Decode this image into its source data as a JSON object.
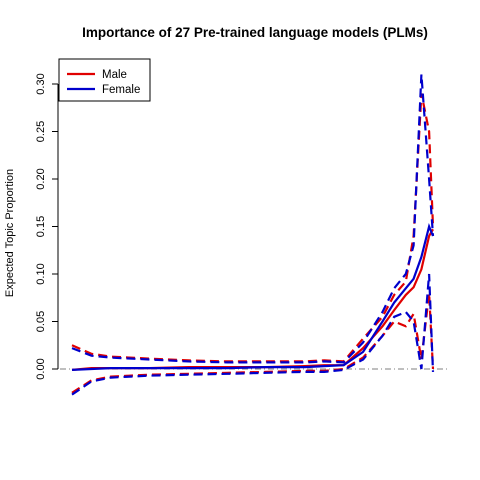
{
  "chart_data": {
    "type": "line",
    "title": "Importance of 27 Pre-trained language models (PLMs)",
    "xlabel": "",
    "ylabel": "Expected Topic Proportion",
    "ylim": [
      -0.03,
      0.32
    ],
    "xlim": [
      0.0,
      0.96
    ],
    "y_ticks": [
      0.0,
      0.05,
      0.1,
      0.15,
      0.2,
      0.25,
      0.3
    ],
    "y_tick_labels": [
      "0.00",
      "0.05",
      "0.10",
      "0.15",
      "0.20",
      "0.25",
      "0.30"
    ],
    "reference_line": 0,
    "grid": false,
    "legend": {
      "position": "top-left",
      "entries": [
        {
          "label": "Male",
          "color": "#e00000"
        },
        {
          "label": "Female",
          "color": "#0000cc"
        }
      ]
    },
    "series": [
      {
        "name": "Male",
        "color": "#e00000",
        "x": [
          0.0,
          0.05,
          0.1,
          0.2,
          0.3,
          0.4,
          0.5,
          0.6,
          0.65,
          0.7,
          0.75,
          0.8,
          0.83,
          0.86,
          0.88,
          0.9,
          0.92,
          0.93
        ],
        "y": [
          -0.001,
          0.001,
          0.001,
          0.001,
          0.002,
          0.002,
          0.002,
          0.003,
          0.004,
          0.004,
          0.022,
          0.045,
          0.062,
          0.078,
          0.086,
          0.105,
          0.14,
          0.147
        ],
        "lower": [
          -0.025,
          -0.012,
          -0.008,
          -0.006,
          -0.005,
          -0.004,
          -0.003,
          -0.002,
          -0.002,
          0.0,
          0.012,
          0.035,
          0.05,
          0.045,
          0.058,
          0.01,
          0.08,
          0.0
        ],
        "upper": [
          0.025,
          0.016,
          0.013,
          0.011,
          0.009,
          0.008,
          0.008,
          0.008,
          0.009,
          0.008,
          0.032,
          0.055,
          0.078,
          0.092,
          0.14,
          0.29,
          0.25,
          0.15
        ]
      },
      {
        "name": "Female",
        "color": "#0000cc",
        "x": [
          0.0,
          0.05,
          0.1,
          0.2,
          0.3,
          0.4,
          0.5,
          0.6,
          0.65,
          0.7,
          0.75,
          0.8,
          0.83,
          0.86,
          0.88,
          0.9,
          0.92,
          0.93
        ],
        "y": [
          -0.001,
          0.0,
          0.001,
          0.001,
          0.001,
          0.001,
          0.002,
          0.002,
          0.003,
          0.004,
          0.018,
          0.05,
          0.07,
          0.085,
          0.095,
          0.118,
          0.15,
          0.14
        ],
        "lower": [
          -0.027,
          -0.013,
          -0.009,
          -0.007,
          -0.006,
          -0.005,
          -0.004,
          -0.003,
          -0.003,
          -0.001,
          0.01,
          0.035,
          0.055,
          0.06,
          0.05,
          0.0,
          0.1,
          -0.003
        ],
        "upper": [
          0.022,
          0.014,
          0.012,
          0.01,
          0.008,
          0.007,
          0.007,
          0.007,
          0.008,
          0.007,
          0.028,
          0.06,
          0.085,
          0.1,
          0.13,
          0.31,
          0.2,
          0.14
        ]
      }
    ]
  }
}
